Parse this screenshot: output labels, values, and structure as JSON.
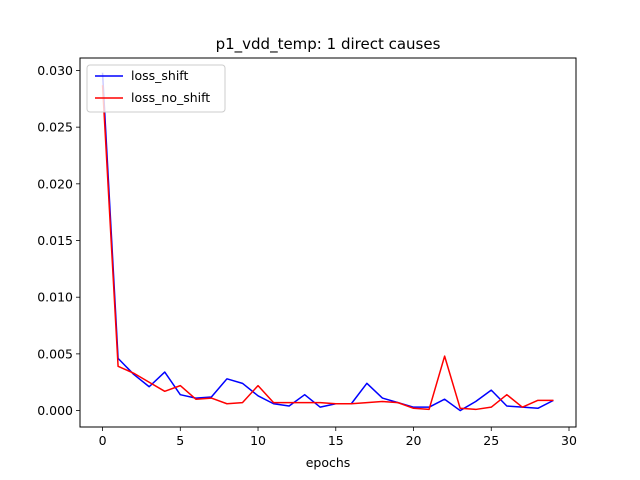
{
  "chart_data": {
    "type": "line",
    "title": "p1_vdd_temp: 1 direct causes",
    "xlabel": "epochs",
    "ylabel": "",
    "xlim": [
      -1.45,
      30.45
    ],
    "ylim": [
      -0.00145,
      0.0311
    ],
    "xticks": [
      0,
      5,
      10,
      15,
      20,
      25,
      30
    ],
    "yticks": [
      0.0,
      0.005,
      0.01,
      0.015,
      0.02,
      0.025,
      0.03
    ],
    "ytick_labels": [
      "0.000",
      "0.005",
      "0.010",
      "0.015",
      "0.020",
      "0.025",
      "0.030"
    ],
    "grid": false,
    "legend_position": "upper-left",
    "x": [
      0,
      1,
      2,
      3,
      4,
      5,
      6,
      7,
      8,
      9,
      10,
      11,
      12,
      13,
      14,
      15,
      16,
      17,
      18,
      19,
      20,
      21,
      22,
      23,
      24,
      25,
      26,
      27,
      28,
      29
    ],
    "series": [
      {
        "name": "loss_shift",
        "color": "#0000ff",
        "values": [
          0.0298,
          0.0046,
          0.0032,
          0.0021,
          0.0034,
          0.0014,
          0.0011,
          0.0012,
          0.0028,
          0.0024,
          0.0013,
          0.0006,
          0.0004,
          0.0014,
          0.0003,
          0.0006,
          0.0006,
          0.0024,
          0.0011,
          0.0007,
          0.0003,
          0.0003,
          0.001,
          0.0,
          0.0008,
          0.0018,
          0.0004,
          0.0003,
          0.0002,
          0.0009
        ]
      },
      {
        "name": "loss_no_shift",
        "color": "#ff0000",
        "values": [
          0.0287,
          0.0039,
          0.0033,
          0.0025,
          0.0017,
          0.0022,
          0.001,
          0.0011,
          0.0006,
          0.0007,
          0.0022,
          0.0007,
          0.0007,
          0.0007,
          0.0007,
          0.0006,
          0.0006,
          0.0007,
          0.0008,
          0.0007,
          0.0002,
          0.0001,
          0.0048,
          0.0002,
          0.0001,
          0.0003,
          0.0014,
          0.0003,
          0.0009,
          0.0009
        ]
      }
    ]
  }
}
